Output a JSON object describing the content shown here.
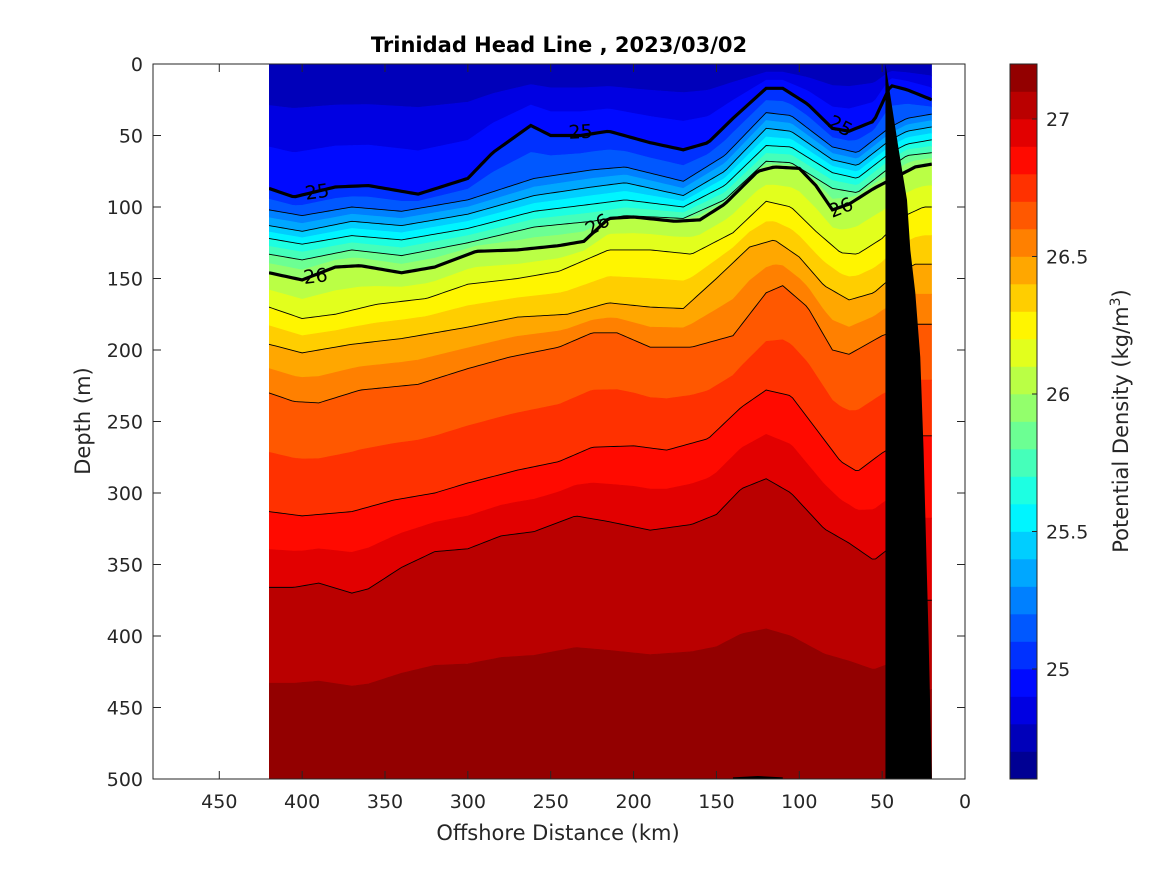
{
  "chart_data": {
    "type": "contour",
    "title": "Trinidad Head Line , 2023/03/02",
    "xlabel": "Offshore Distance (km)",
    "ylabel": "Depth (m)",
    "xlim": [
      490,
      0
    ],
    "ylim": [
      0,
      500
    ],
    "x_reversed": true,
    "y_reversed": true,
    "x_ticks": [
      "450",
      "400",
      "350",
      "300",
      "250",
      "200",
      "150",
      "100",
      "50",
      "0"
    ],
    "y_ticks": [
      "0",
      "50",
      "100",
      "150",
      "200",
      "250",
      "300",
      "350",
      "400",
      "450",
      "500"
    ],
    "data_extent_km": [
      420,
      20
    ],
    "colorbar": {
      "label": "Potential Density (kg/m",
      "label_superscript": "3",
      "label_suffix": ")",
      "range": [
        24.6,
        27.2
      ],
      "step": 0.1,
      "ticks": [
        "25",
        "25.5",
        "26",
        "26.5",
        "27"
      ],
      "colormap": "jet"
    },
    "isopycnals": [
      {
        "sigma": 25.0,
        "bold": true,
        "points": [
          [
            420,
            87
          ],
          [
            405,
            93
          ],
          [
            380,
            86
          ],
          [
            360,
            85
          ],
          [
            330,
            91
          ],
          [
            300,
            80
          ],
          [
            285,
            62
          ],
          [
            262,
            43
          ],
          [
            250,
            50
          ],
          [
            232,
            50
          ],
          [
            215,
            47
          ],
          [
            190,
            55
          ],
          [
            170,
            60
          ],
          [
            155,
            55
          ],
          [
            140,
            38
          ],
          [
            120,
            17
          ],
          [
            110,
            17
          ],
          [
            95,
            28
          ],
          [
            80,
            45
          ],
          [
            70,
            47
          ],
          [
            55,
            40
          ],
          [
            45,
            15
          ],
          [
            35,
            18
          ],
          [
            20,
            25
          ]
        ]
      },
      {
        "sigma": 25.2,
        "bold": false,
        "points": [
          [
            420,
            102
          ],
          [
            400,
            106
          ],
          [
            370,
            100
          ],
          [
            340,
            103
          ],
          [
            300,
            95
          ],
          [
            260,
            80
          ],
          [
            225,
            74
          ],
          [
            205,
            72
          ],
          [
            170,
            82
          ],
          [
            145,
            64
          ],
          [
            120,
            34
          ],
          [
            105,
            36
          ],
          [
            80,
            58
          ],
          [
            65,
            62
          ],
          [
            45,
            44
          ],
          [
            35,
            38
          ],
          [
            20,
            35
          ]
        ]
      },
      {
        "sigma": 25.4,
        "bold": false,
        "points": [
          [
            420,
            113
          ],
          [
            400,
            117
          ],
          [
            370,
            110
          ],
          [
            340,
            113
          ],
          [
            300,
            105
          ],
          [
            260,
            92
          ],
          [
            225,
            86
          ],
          [
            205,
            83
          ],
          [
            170,
            92
          ],
          [
            145,
            75
          ],
          [
            120,
            45
          ],
          [
            105,
            47
          ],
          [
            80,
            67
          ],
          [
            65,
            71
          ],
          [
            45,
            53
          ],
          [
            35,
            47
          ],
          [
            20,
            44
          ]
        ]
      },
      {
        "sigma": 25.6,
        "bold": false,
        "points": [
          [
            420,
            122
          ],
          [
            400,
            126
          ],
          [
            370,
            120
          ],
          [
            340,
            123
          ],
          [
            300,
            115
          ],
          [
            260,
            103
          ],
          [
            225,
            98
          ],
          [
            205,
            95
          ],
          [
            170,
            100
          ],
          [
            145,
            85
          ],
          [
            120,
            57
          ],
          [
            105,
            58
          ],
          [
            80,
            76
          ],
          [
            65,
            80
          ],
          [
            45,
            62
          ],
          [
            35,
            56
          ],
          [
            20,
            53
          ]
        ]
      },
      {
        "sigma": 25.8,
        "bold": false,
        "points": [
          [
            420,
            133
          ],
          [
            400,
            137
          ],
          [
            370,
            130
          ],
          [
            340,
            134
          ],
          [
            300,
            125
          ],
          [
            260,
            114
          ],
          [
            225,
            110
          ],
          [
            205,
            106
          ],
          [
            170,
            108
          ],
          [
            145,
            95
          ],
          [
            120,
            68
          ],
          [
            105,
            69
          ],
          [
            80,
            87
          ],
          [
            65,
            90
          ],
          [
            45,
            72
          ],
          [
            35,
            64
          ],
          [
            20,
            62
          ]
        ]
      },
      {
        "sigma": 26.0,
        "bold": true,
        "points": [
          [
            420,
            146
          ],
          [
            400,
            151
          ],
          [
            380,
            142
          ],
          [
            365,
            141
          ],
          [
            340,
            146
          ],
          [
            320,
            142
          ],
          [
            295,
            131
          ],
          [
            270,
            130
          ],
          [
            245,
            127
          ],
          [
            230,
            124
          ],
          [
            215,
            108
          ],
          [
            200,
            107
          ],
          [
            175,
            110
          ],
          [
            160,
            109
          ],
          [
            145,
            98
          ],
          [
            125,
            75
          ],
          [
            115,
            72
          ],
          [
            100,
            73
          ],
          [
            90,
            85
          ],
          [
            80,
            102
          ],
          [
            70,
            98
          ],
          [
            55,
            87
          ],
          [
            40,
            78
          ],
          [
            30,
            72
          ],
          [
            20,
            70
          ]
        ]
      },
      {
        "sigma": 26.2,
        "bold": false,
        "points": [
          [
            420,
            170
          ],
          [
            400,
            178
          ],
          [
            380,
            175
          ],
          [
            355,
            168
          ],
          [
            325,
            164
          ],
          [
            300,
            154
          ],
          [
            270,
            150
          ],
          [
            245,
            145
          ],
          [
            215,
            130
          ],
          [
            190,
            130
          ],
          [
            165,
            133
          ],
          [
            140,
            118
          ],
          [
            120,
            96
          ],
          [
            105,
            100
          ],
          [
            90,
            117
          ],
          [
            75,
            132
          ],
          [
            65,
            133
          ],
          [
            50,
            122
          ],
          [
            38,
            107
          ],
          [
            25,
            100
          ]
        ]
      },
      {
        "sigma": 26.4,
        "bold": false,
        "points": [
          [
            420,
            196
          ],
          [
            400,
            202
          ],
          [
            370,
            196
          ],
          [
            340,
            192
          ],
          [
            300,
            184
          ],
          [
            270,
            177
          ],
          [
            240,
            175
          ],
          [
            215,
            167
          ],
          [
            190,
            170
          ],
          [
            170,
            171
          ],
          [
            150,
            150
          ],
          [
            130,
            128
          ],
          [
            115,
            123
          ],
          [
            100,
            135
          ],
          [
            85,
            155
          ],
          [
            70,
            165
          ],
          [
            55,
            160
          ],
          [
            42,
            147
          ],
          [
            30,
            140
          ]
        ]
      },
      {
        "sigma": 26.6,
        "bold": false,
        "points": [
          [
            420,
            230
          ],
          [
            405,
            236
          ],
          [
            390,
            237
          ],
          [
            365,
            228
          ],
          [
            330,
            224
          ],
          [
            300,
            213
          ],
          [
            275,
            205
          ],
          [
            245,
            198
          ],
          [
            225,
            188
          ],
          [
            210,
            188
          ],
          [
            190,
            198
          ],
          [
            165,
            198
          ],
          [
            140,
            190
          ],
          [
            120,
            160
          ],
          [
            110,
            155
          ],
          [
            95,
            170
          ],
          [
            80,
            200
          ],
          [
            70,
            203
          ],
          [
            50,
            190
          ],
          [
            38,
            185
          ],
          [
            30,
            182
          ]
        ]
      },
      {
        "sigma": 26.8,
        "bold": false,
        "points": [
          [
            420,
            313
          ],
          [
            400,
            316
          ],
          [
            370,
            313
          ],
          [
            345,
            305
          ],
          [
            320,
            300
          ],
          [
            300,
            293
          ],
          [
            270,
            284
          ],
          [
            245,
            278
          ],
          [
            225,
            268
          ],
          [
            200,
            267
          ],
          [
            180,
            270
          ],
          [
            155,
            262
          ],
          [
            135,
            240
          ],
          [
            120,
            228
          ],
          [
            105,
            232
          ],
          [
            90,
            255
          ],
          [
            75,
            278
          ],
          [
            65,
            285
          ],
          [
            50,
            272
          ],
          [
            40,
            265
          ],
          [
            30,
            260
          ]
        ]
      },
      {
        "sigma": 26.9,
        "bold": true,
        "points": [
          [
            140,
            500
          ],
          [
            125,
            499
          ],
          [
            110,
            500
          ]
        ]
      },
      {
        "sigma": 27.0,
        "bold": false,
        "points": [
          [
            420,
            366
          ],
          [
            405,
            366
          ],
          [
            390,
            363
          ],
          [
            370,
            370
          ],
          [
            360,
            367
          ],
          [
            340,
            352
          ],
          [
            320,
            341
          ],
          [
            300,
            339
          ],
          [
            280,
            330
          ],
          [
            260,
            327
          ],
          [
            235,
            316
          ],
          [
            215,
            320
          ],
          [
            190,
            326
          ],
          [
            165,
            322
          ],
          [
            150,
            315
          ],
          [
            135,
            297
          ],
          [
            120,
            290
          ],
          [
            105,
            300
          ],
          [
            85,
            325
          ],
          [
            70,
            335
          ],
          [
            55,
            347
          ],
          [
            45,
            338
          ],
          [
            40,
            350
          ],
          [
            30,
            375
          ]
        ]
      }
    ],
    "contour_labels": [
      {
        "text": "25",
        "x": 391,
        "y": 89,
        "rot": -8
      },
      {
        "text": "25",
        "x": 232,
        "y": 47,
        "rot": -3
      },
      {
        "text": "25",
        "x": 75,
        "y": 43,
        "rot": 28
      },
      {
        "text": "26",
        "x": 392,
        "y": 148,
        "rot": -7
      },
      {
        "text": "26",
        "x": 222,
        "y": 112,
        "rot": -30
      },
      {
        "text": "26",
        "x": 75,
        "y": 100,
        "rot": -22
      }
    ],
    "seafloor": {
      "color": "#000000",
      "points": [
        [
          20,
          500
        ],
        [
          22,
          400
        ],
        [
          25,
          270
        ],
        [
          27,
          205
        ],
        [
          30,
          160
        ],
        [
          33,
          130
        ],
        [
          35,
          95
        ],
        [
          40,
          60
        ],
        [
          48,
          0
        ],
        [
          48,
          500
        ]
      ]
    }
  }
}
